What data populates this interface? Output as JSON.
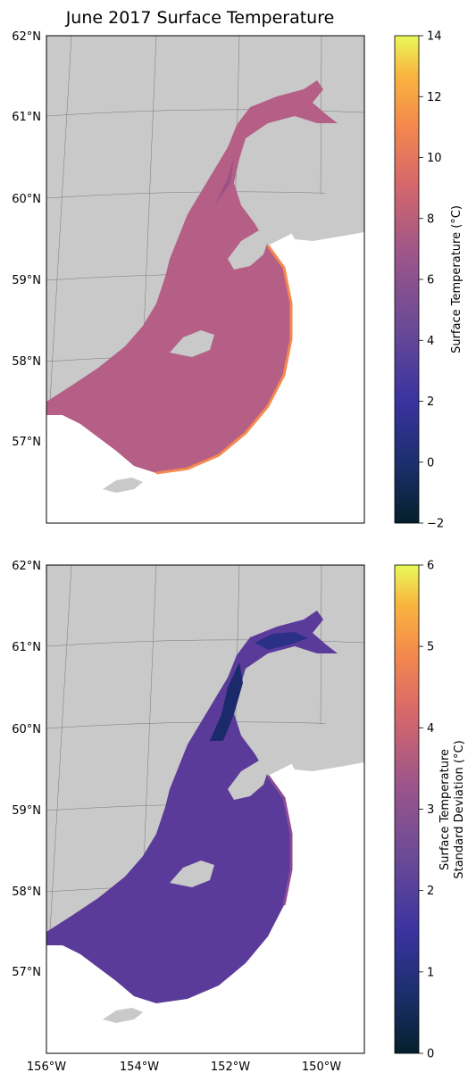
{
  "title": "June 2017 Surface Temperature",
  "map": {
    "lat_labels": [
      "62°N",
      "61°N",
      "60°N",
      "59°N",
      "58°N",
      "57°N"
    ],
    "lon_labels": [
      "156°W",
      "154°W",
      "152°W",
      "150°W"
    ],
    "land_color": "#c9c9c9",
    "frame_color": "#000000"
  },
  "panels": [
    {
      "colorbar": {
        "label": "Surface Temperature (°C)",
        "ticks": [
          "14",
          "12",
          "10",
          "8",
          "6",
          "4",
          "2",
          "0",
          "−2"
        ],
        "range": [
          -2,
          14
        ],
        "colormap": "thermal"
      },
      "field_colors": {
        "main": "#b55f86",
        "edge": "#f5894f",
        "channel": "#9a5188",
        "upper": "#e8783f"
      }
    },
    {
      "colorbar": {
        "label_line1": "Surface Temperature",
        "label_line2": "Standard Deviation (°C)",
        "ticks": [
          "6",
          "5",
          "4",
          "3",
          "2",
          "1",
          "0"
        ],
        "range": [
          0,
          6
        ],
        "colormap": "thermal"
      },
      "field_colors": {
        "main": "#5a3b9a",
        "edge": "#8c4b95",
        "channel": "#1b2a6a",
        "upper": "#2a2f88"
      }
    }
  ]
}
